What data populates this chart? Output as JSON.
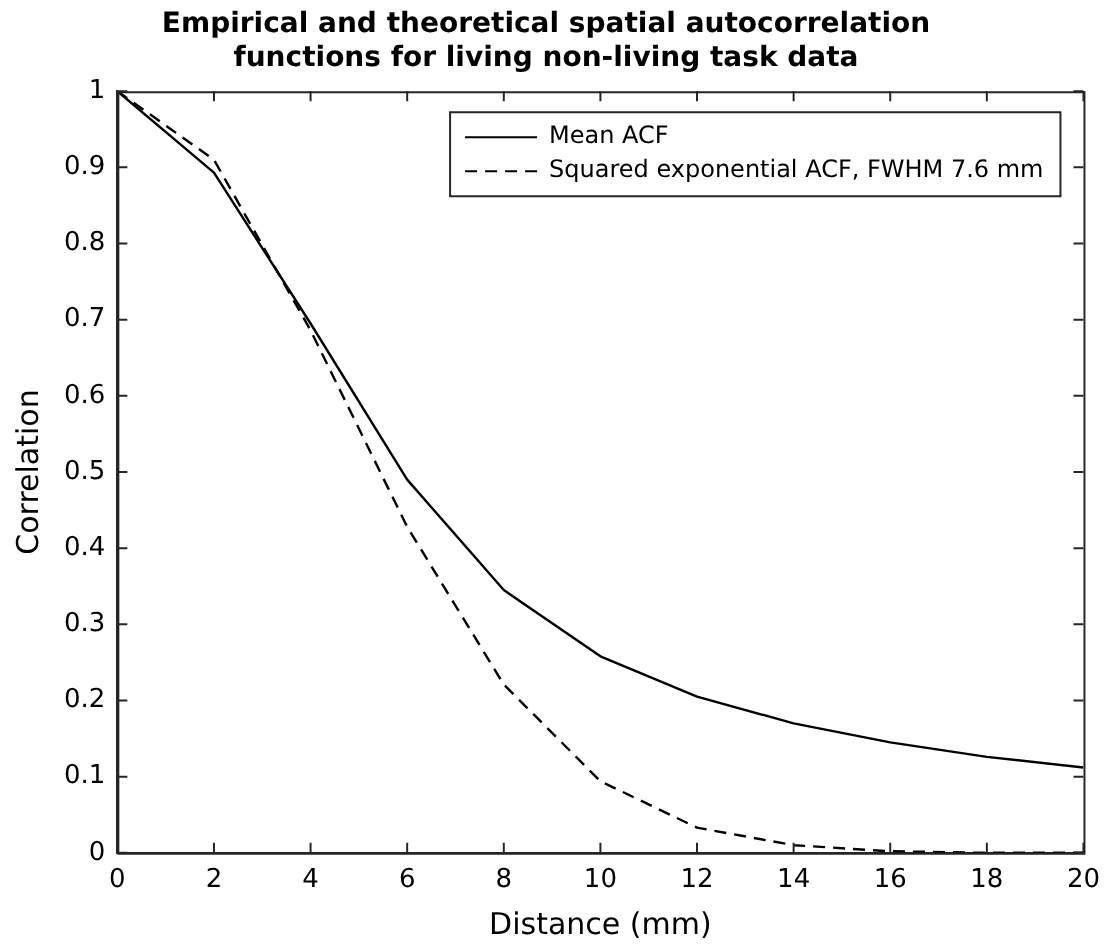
{
  "chart_data": {
    "type": "line",
    "title": "Empirical and theoretical spatial autocorrelation functions for living non-living task data",
    "xlabel": "Distance (mm)",
    "ylabel": "Correlation",
    "x": [
      0,
      2,
      4,
      6,
      8,
      10,
      12,
      14,
      16,
      18,
      20
    ],
    "series": [
      {
        "name": "Mean ACF",
        "color": "#000000",
        "line_style": "solid",
        "values": [
          1,
          0.893,
          0.695,
          0.49,
          0.345,
          0.258,
          0.205,
          0.17,
          0.145,
          0.126,
          0.112
        ]
      },
      {
        "name": "Squared exponential ACF, FWHM 7.6 mm",
        "color": "#000000",
        "line_style": "dashed",
        "values": [
          1,
          0.91,
          0.686,
          0.428,
          0.221,
          0.094,
          0.033,
          0.01,
          0.002,
          0,
          0
        ]
      }
    ],
    "xlim": [
      0,
      20
    ],
    "xticks": [
      0,
      2,
      4,
      6,
      8,
      10,
      12,
      14,
      16,
      18,
      20
    ],
    "ylim": [
      0,
      1
    ],
    "yticks": [
      0,
      0.1,
      0.2,
      0.3,
      0.4,
      0.5,
      0.6,
      0.7,
      0.8,
      0.9,
      1
    ],
    "grid": false,
    "legend": "top right",
    "marker": "none"
  }
}
